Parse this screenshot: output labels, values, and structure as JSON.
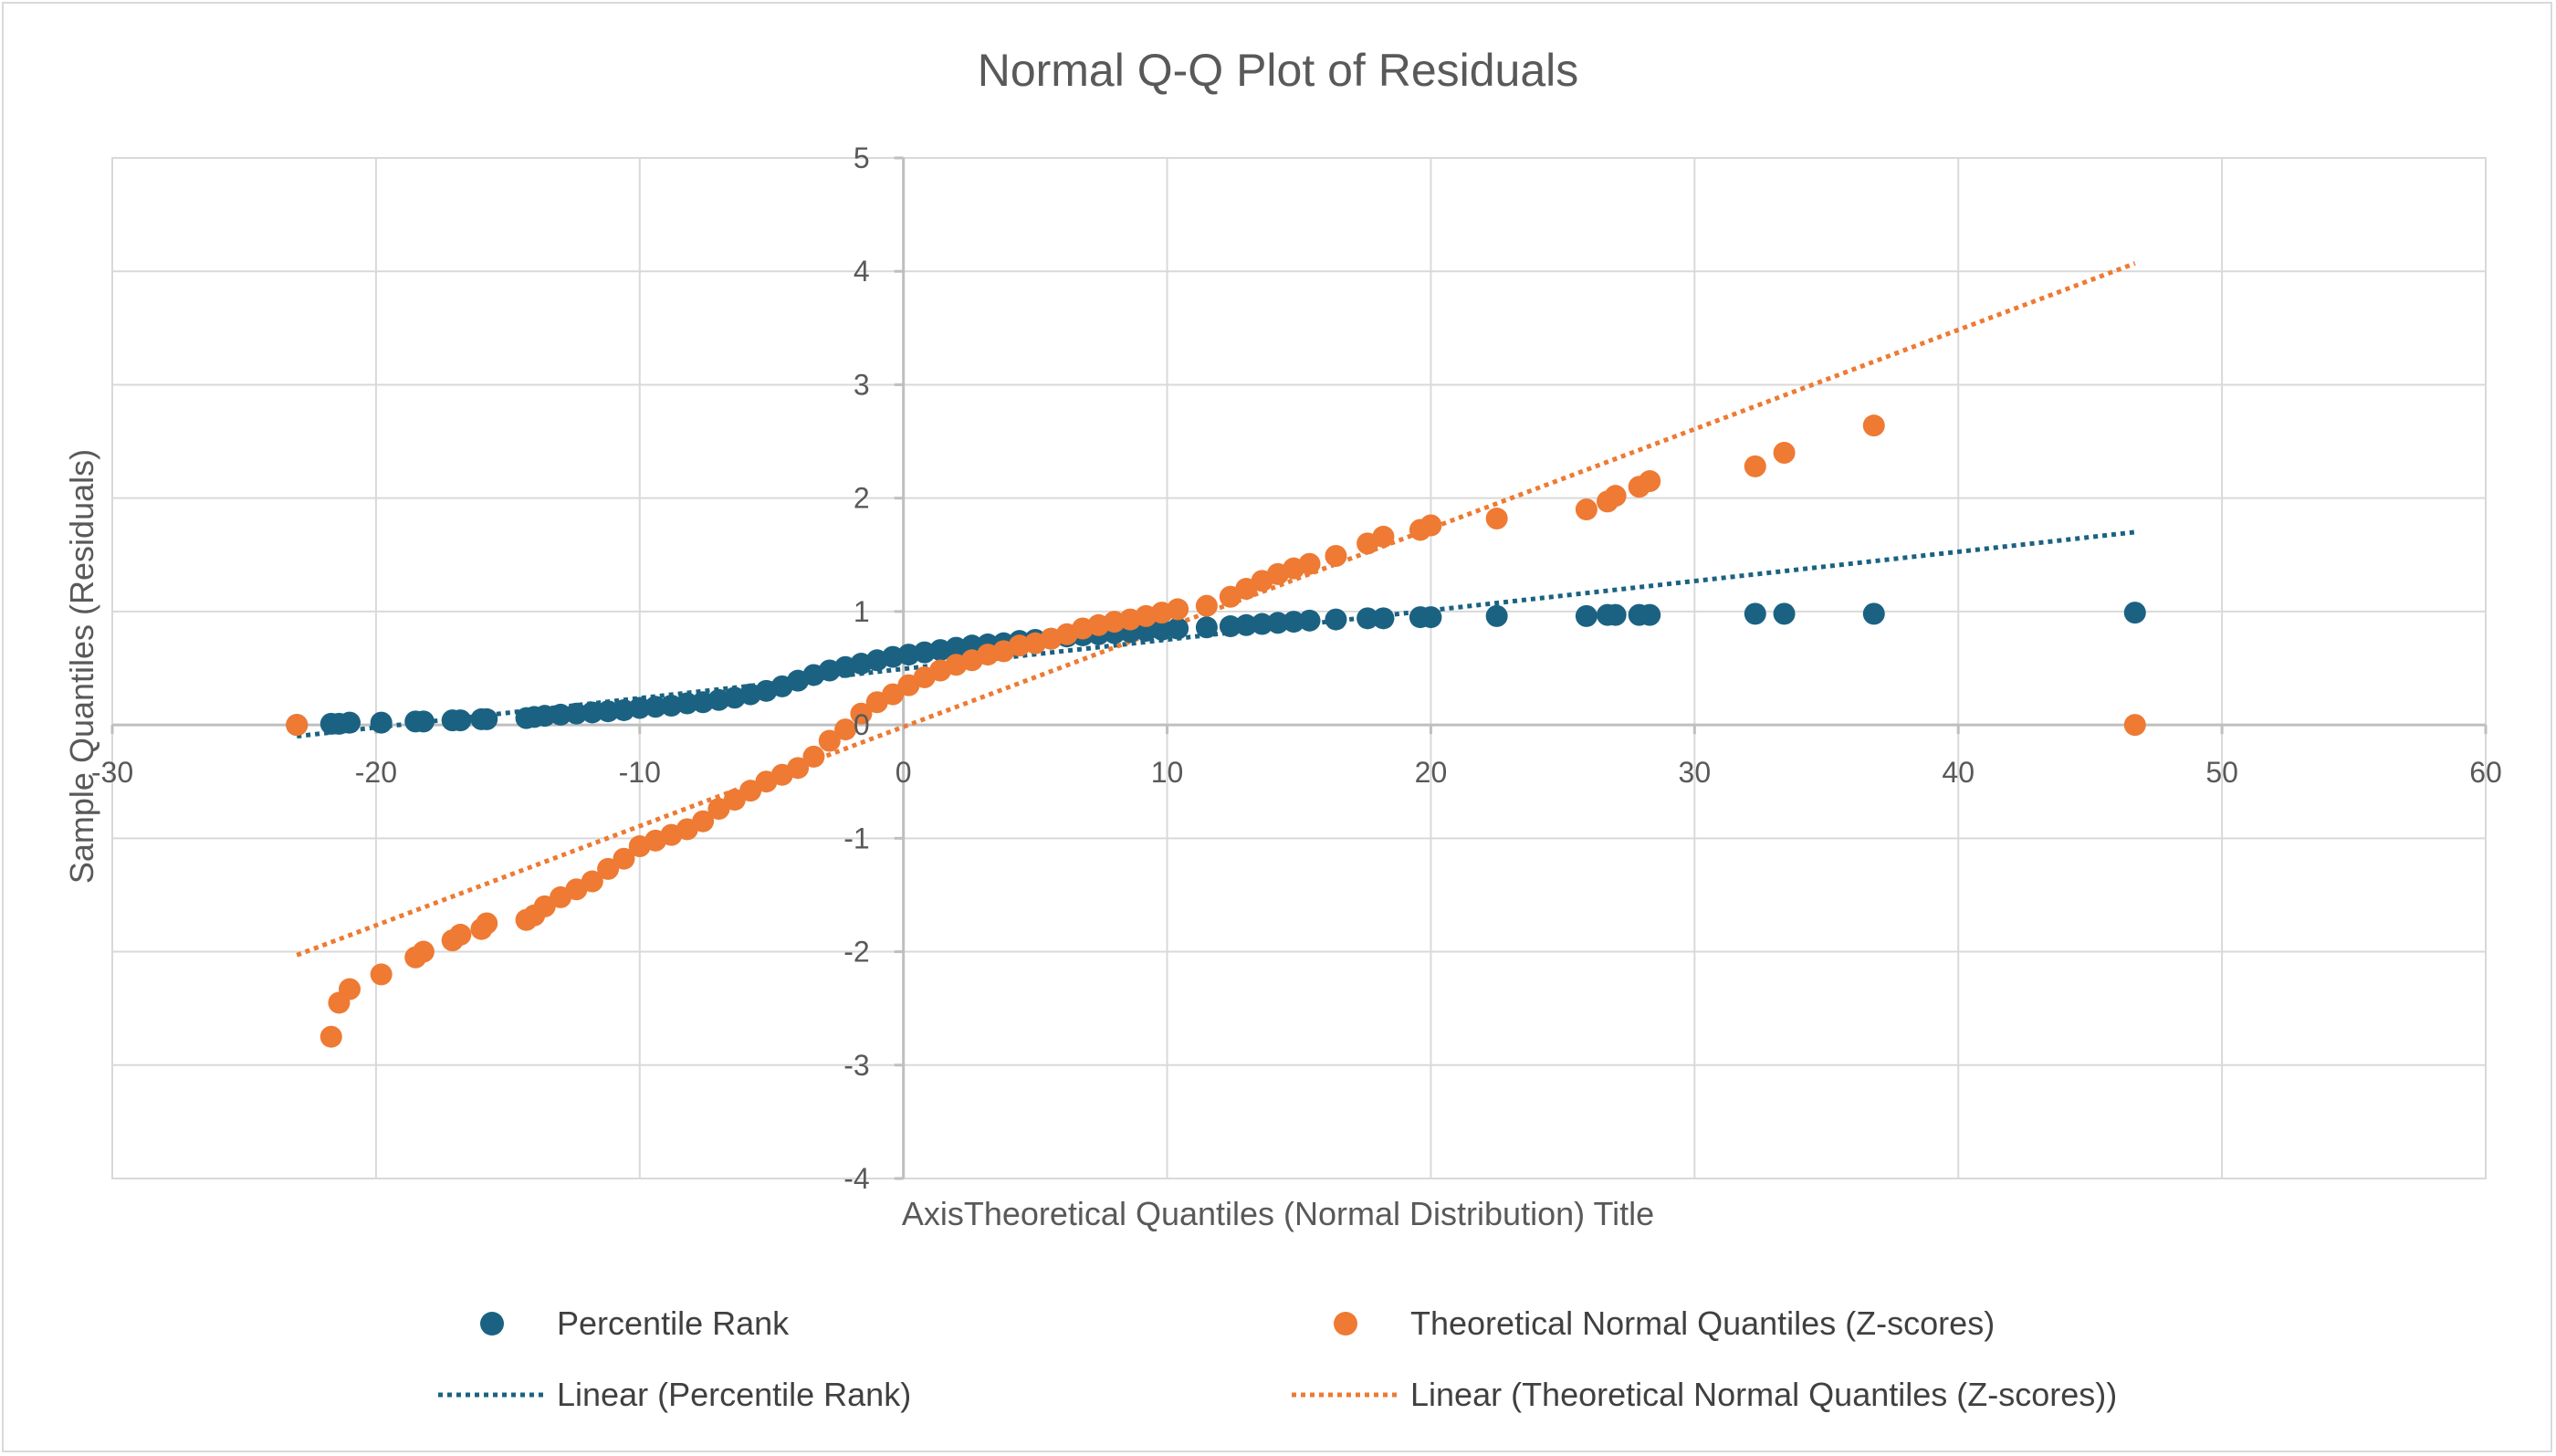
{
  "chart_data": {
    "type": "scatter",
    "title": "Normal Q-Q Plot of Residuals",
    "xlabel": "AxisTheoretical Quantiles (Normal Distribution) Title",
    "ylabel": "Sample Quantiles (Residuals)",
    "xlim": [
      -30,
      60
    ],
    "ylim": [
      -4,
      5
    ],
    "x_ticks": [
      -30,
      -20,
      -10,
      0,
      10,
      20,
      30,
      40,
      50,
      60
    ],
    "y_ticks": [
      -4,
      -3,
      -2,
      -1,
      0,
      1,
      2,
      3,
      4,
      5
    ],
    "x_tick_labels": [
      "-30",
      "-20",
      "-10",
      "0",
      "10",
      "20",
      "30",
      "40",
      "50",
      "60"
    ],
    "y_tick_labels": [
      "-4",
      "-3",
      "-2",
      "-1",
      "0",
      "1",
      "2",
      "3",
      "4",
      "5"
    ],
    "grid": true,
    "legend_position": "bottom",
    "colors": {
      "percentile": "#1b6282",
      "theoretical": "#ee7a33",
      "grid": "#d9d9d9",
      "axis": "#bfbfbf"
    },
    "series": [
      {
        "name": "Percentile Rank",
        "color": "#1b6282",
        "x": [
          -23.0,
          -21.7,
          -21.4,
          -21.0,
          -19.8,
          -18.5,
          -18.2,
          -17.1,
          -16.8,
          -16.0,
          -15.8,
          -14.3,
          -14.0,
          -13.6,
          -13.0,
          -12.4,
          -11.8,
          -11.2,
          -10.6,
          -10.0,
          -9.4,
          -8.8,
          -8.2,
          -7.6,
          -7.0,
          -6.4,
          -5.8,
          -5.2,
          -4.6,
          -4.0,
          -3.4,
          -2.8,
          -2.2,
          -1.6,
          -1.0,
          -0.4,
          0.2,
          0.8,
          1.4,
          2.0,
          2.6,
          3.2,
          3.8,
          4.4,
          5.0,
          5.6,
          6.2,
          6.8,
          7.4,
          8.0,
          8.6,
          9.2,
          9.8,
          10.4,
          11.5,
          12.4,
          13.0,
          13.6,
          14.2,
          14.8,
          15.4,
          16.4,
          17.6,
          18.2,
          19.6,
          20.0,
          22.5,
          25.9,
          26.7,
          27.0,
          27.9,
          28.3,
          32.3,
          33.4,
          36.8,
          46.7
        ],
        "y": [
          0.0,
          0.01,
          0.01,
          0.02,
          0.02,
          0.03,
          0.03,
          0.04,
          0.04,
          0.05,
          0.05,
          0.06,
          0.07,
          0.08,
          0.09,
          0.1,
          0.11,
          0.12,
          0.13,
          0.15,
          0.16,
          0.17,
          0.19,
          0.2,
          0.22,
          0.24,
          0.27,
          0.3,
          0.34,
          0.39,
          0.44,
          0.48,
          0.51,
          0.54,
          0.57,
          0.6,
          0.62,
          0.64,
          0.66,
          0.68,
          0.7,
          0.71,
          0.72,
          0.74,
          0.75,
          0.76,
          0.78,
          0.79,
          0.8,
          0.81,
          0.82,
          0.83,
          0.84,
          0.85,
          0.86,
          0.87,
          0.88,
          0.89,
          0.9,
          0.91,
          0.92,
          0.93,
          0.94,
          0.94,
          0.95,
          0.95,
          0.96,
          0.96,
          0.97,
          0.97,
          0.97,
          0.97,
          0.98,
          0.98,
          0.98,
          0.99
        ]
      },
      {
        "name": "Theoretical Normal Quantiles (Z-scores)",
        "color": "#ee7a33",
        "x": [
          -23.0,
          -21.7,
          -21.4,
          -21.0,
          -19.8,
          -18.5,
          -18.2,
          -17.1,
          -16.8,
          -16.0,
          -15.8,
          -14.3,
          -14.0,
          -13.6,
          -13.0,
          -12.4,
          -11.8,
          -11.2,
          -10.6,
          -10.0,
          -9.4,
          -8.8,
          -8.2,
          -7.6,
          -7.0,
          -6.4,
          -5.8,
          -5.2,
          -4.6,
          -4.0,
          -3.4,
          -2.8,
          -2.2,
          -1.6,
          -1.0,
          -0.4,
          0.2,
          0.8,
          1.4,
          2.0,
          2.6,
          3.2,
          3.8,
          4.4,
          5.0,
          5.6,
          6.2,
          6.8,
          7.4,
          8.0,
          8.6,
          9.2,
          9.8,
          10.4,
          11.5,
          12.4,
          13.0,
          13.6,
          14.2,
          14.8,
          15.4,
          16.4,
          17.6,
          18.2,
          19.6,
          20.0,
          22.5,
          25.9,
          26.7,
          27.0,
          27.9,
          28.3,
          32.3,
          33.4,
          36.8,
          46.7
        ],
        "y": [
          0.0,
          -2.75,
          -2.45,
          -2.33,
          -2.2,
          -2.05,
          -2.0,
          -1.9,
          -1.85,
          -1.8,
          -1.75,
          -1.72,
          -1.68,
          -1.6,
          -1.52,
          -1.45,
          -1.38,
          -1.27,
          -1.18,
          -1.07,
          -1.02,
          -0.97,
          -0.92,
          -0.85,
          -0.74,
          -0.66,
          -0.58,
          -0.5,
          -0.44,
          -0.38,
          -0.28,
          -0.14,
          -0.04,
          0.1,
          0.2,
          0.27,
          0.35,
          0.42,
          0.48,
          0.53,
          0.57,
          0.62,
          0.65,
          0.7,
          0.72,
          0.76,
          0.8,
          0.85,
          0.88,
          0.91,
          0.93,
          0.96,
          0.99,
          1.02,
          1.05,
          1.13,
          1.2,
          1.27,
          1.33,
          1.38,
          1.42,
          1.49,
          1.6,
          1.66,
          1.72,
          1.76,
          1.82,
          1.9,
          1.97,
          2.02,
          2.1,
          2.15,
          2.28,
          2.4,
          2.64,
          0.0
        ]
      }
    ],
    "trendlines": [
      {
        "name": "Linear (Percentile Rank)",
        "color": "#1b6282",
        "x": [
          -23.0,
          46.7
        ],
        "y": [
          -0.1,
          1.7
        ]
      },
      {
        "name": "Linear (Theoretical Normal Quantiles (Z-scores))",
        "color": "#ee7a33",
        "x": [
          -23.0,
          46.7
        ],
        "y": [
          -2.03,
          4.07
        ]
      }
    ]
  }
}
